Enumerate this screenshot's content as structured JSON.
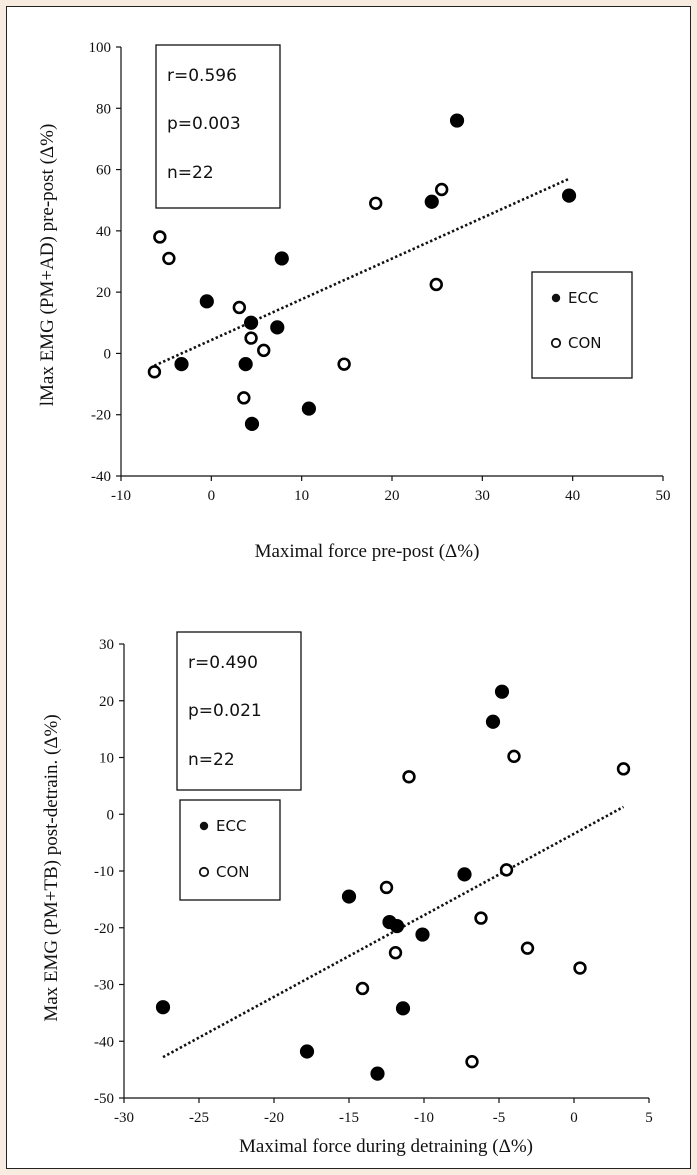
{
  "chart_data": [
    {
      "type": "scatter",
      "xlabel": "Maximal force pre-post (Δ%)",
      "ylabel": "lMax EMG (PM+AD) pre-post (Δ%)",
      "xlim": [
        -10,
        50
      ],
      "ylim": [
        -40,
        100
      ],
      "xticks": [
        -10,
        0,
        10,
        20,
        30,
        40,
        50
      ],
      "yticks": [
        -40,
        -20,
        0,
        20,
        40,
        60,
        80,
        100
      ],
      "stats": [
        "r=0.596",
        "p=0.003",
        "n=22"
      ],
      "legend": {
        "placement": "right",
        "entries": [
          "ECC",
          "CON"
        ]
      },
      "series": [
        {
          "name": "ECC",
          "marker": "filled-circle",
          "points": [
            [
              -0.5,
              17
            ],
            [
              -3.3,
              -3.5
            ],
            [
              3.8,
              -3.5
            ],
            [
              4.4,
              10
            ],
            [
              4.5,
              -23
            ],
            [
              7.3,
              8.5
            ],
            [
              7.8,
              31
            ],
            [
              10.8,
              -18
            ],
            [
              24.4,
              49.5
            ],
            [
              27.2,
              76
            ],
            [
              39.6,
              51.5
            ]
          ]
        },
        {
          "name": "CON",
          "marker": "open-circle",
          "points": [
            [
              -6.3,
              -6
            ],
            [
              -5.7,
              38
            ],
            [
              -4.7,
              31
            ],
            [
              3.1,
              15
            ],
            [
              3.6,
              -14.5
            ],
            [
              4.4,
              5
            ],
            [
              5.8,
              1
            ],
            [
              14.7,
              -3.5
            ],
            [
              18.2,
              49
            ],
            [
              24.9,
              22.5
            ],
            [
              25.5,
              53.5
            ]
          ]
        }
      ],
      "trendline": {
        "style": "dotted",
        "from": [
          -6.3,
          -4
        ],
        "to": [
          39.6,
          57
        ]
      }
    },
    {
      "type": "scatter",
      "xlabel": "Maximal force during detraining (Δ%)",
      "ylabel": "Max EMG (PM+TB) post-detrain. (Δ%)",
      "xlim": [
        -30,
        5
      ],
      "ylim": [
        -50,
        30
      ],
      "xticks": [
        -30,
        -25,
        -20,
        -15,
        -10,
        -5,
        0,
        5
      ],
      "yticks": [
        -50,
        -40,
        -30,
        -20,
        -10,
        0,
        10,
        20,
        30
      ],
      "stats": [
        "r=0.490",
        "p=0.021",
        "n=22"
      ],
      "legend": {
        "placement": "upper-left",
        "entries": [
          "ECC",
          "CON"
        ]
      },
      "series": [
        {
          "name": "ECC",
          "marker": "filled-circle",
          "points": [
            [
              -27.4,
              -34
            ],
            [
              -17.8,
              -41.8
            ],
            [
              -15,
              -14.5
            ],
            [
              -13.1,
              -45.7
            ],
            [
              -12.3,
              -19
            ],
            [
              -11.8,
              -19.7
            ],
            [
              -11.4,
              -34.2
            ],
            [
              -10.1,
              -21.2
            ],
            [
              -7.3,
              -10.6
            ],
            [
              -5.4,
              16.3
            ],
            [
              -4.8,
              21.6
            ]
          ]
        },
        {
          "name": "CON",
          "marker": "open-circle",
          "points": [
            [
              -14.1,
              -30.7
            ],
            [
              -12.5,
              -12.9
            ],
            [
              -11.9,
              -24.4
            ],
            [
              -11,
              6.6
            ],
            [
              -6.8,
              -43.6
            ],
            [
              -6.2,
              -18.3
            ],
            [
              -4.5,
              -9.8
            ],
            [
              -4,
              10.2
            ],
            [
              -3.1,
              -23.6
            ],
            [
              0.4,
              -27.1
            ],
            [
              3.3,
              8
            ]
          ]
        }
      ],
      "trendline": {
        "style": "dotted",
        "from": [
          -27.4,
          -42.8
        ],
        "to": [
          3.3,
          1.3
        ]
      }
    }
  ]
}
